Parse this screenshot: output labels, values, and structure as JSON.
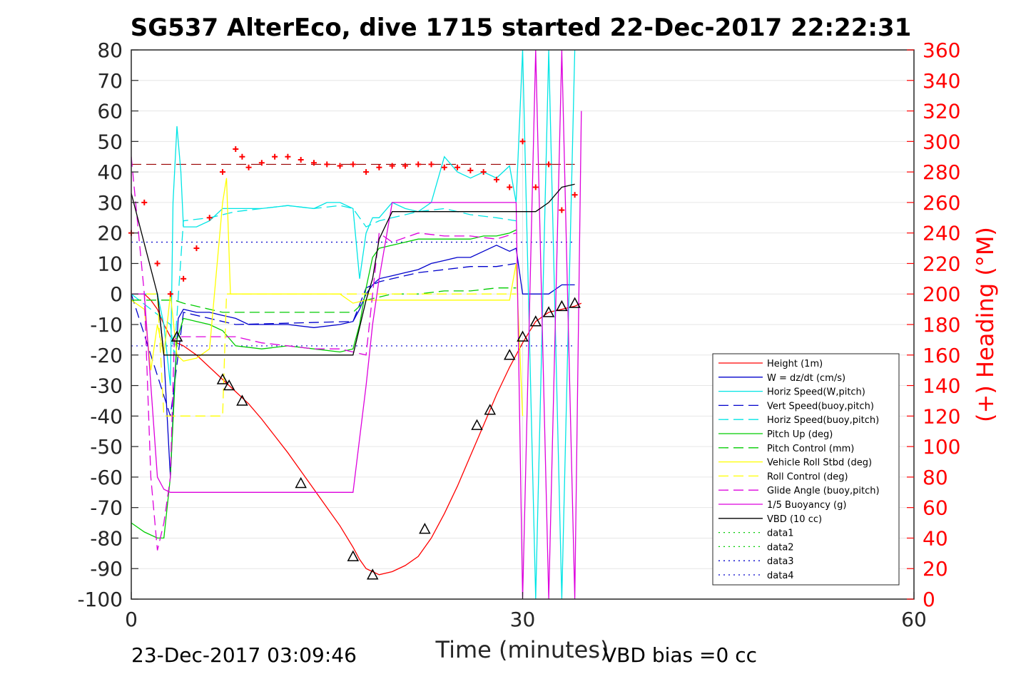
{
  "chart_data": {
    "type": "line",
    "title": "SG537 AlterEco, dive 1715 started 22-Dec-2017 22:22:31",
    "xlabel": "Time (minutes)",
    "ylabel": "",
    "y2label": "(+) Heading (°M)",
    "xlim": [
      0,
      60
    ],
    "ylim": [
      -100,
      80
    ],
    "y2lim": [
      0,
      360
    ],
    "xticks": [
      "0",
      "30",
      "60"
    ],
    "yticks": [
      "80",
      "70",
      "60",
      "50",
      "40",
      "30",
      "20",
      "10",
      "0",
      "-10",
      "-20",
      "-30",
      "-40",
      "-50",
      "-60",
      "-70",
      "-80",
      "-90",
      "-100"
    ],
    "y2ticks": [
      "360",
      "340",
      "320",
      "300",
      "280",
      "260",
      "240",
      "220",
      "200",
      "180",
      "160",
      "140",
      "120",
      "100",
      "80",
      "60",
      "40",
      "20",
      "0"
    ],
    "grid": true,
    "legend_position": "bottom-right",
    "footer_left": "23-Dec-2017 03:09:46",
    "footer_right": "VBD bias =0 cc",
    "colors": {
      "height": "#ff0000",
      "w": "#0000cc",
      "horiz_w": "#00e5e5",
      "vert_buoy": "#0000cc",
      "horiz_buoy": "#00e5e5",
      "pitch_up": "#00cc00",
      "pitch_ctrl": "#00cc00",
      "roll": "#ffff00",
      "roll_ctrl": "#ffff00",
      "glide": "#dd00dd",
      "buoyancy": "#dd00dd",
      "vbd": "#000000",
      "heading": "#ff0000"
    },
    "legend": [
      {
        "label": "Height (1m)",
        "color": "#ff0000",
        "dash": "solid"
      },
      {
        "label": "W = dz/dt (cm/s)",
        "color": "#0000cc",
        "dash": "solid"
      },
      {
        "label": "Horiz Speed(W,pitch)",
        "color": "#00e5e5",
        "dash": "solid"
      },
      {
        "label": "Vert Speed(buoy,pitch)",
        "color": "#0000cc",
        "dash": "dashed"
      },
      {
        "label": "Horiz Speed(buoy,pitch)",
        "color": "#00e5e5",
        "dash": "dashed"
      },
      {
        "label": "Pitch Up (deg)",
        "color": "#00cc00",
        "dash": "solid"
      },
      {
        "label": "Pitch Control (mm)",
        "color": "#00cc00",
        "dash": "dashed"
      },
      {
        "label": "Vehicle Roll Stbd (deg)",
        "color": "#ffff00",
        "dash": "solid"
      },
      {
        "label": "Roll Control (deg)",
        "color": "#ffff00",
        "dash": "dashed"
      },
      {
        "label": "Glide Angle (buoy,pitch)",
        "color": "#dd00dd",
        "dash": "dashed"
      },
      {
        "label": "1/5 Buoyancy (g)",
        "color": "#dd00dd",
        "dash": "solid"
      },
      {
        "label": "VBD (10 cc)",
        "color": "#000000",
        "dash": "solid"
      },
      {
        "label": "data1",
        "color": "#00cc00",
        "dash": "dotted"
      },
      {
        "label": "data2",
        "color": "#00cc00",
        "dash": "dotted"
      },
      {
        "label": "data3",
        "color": "#0000cc",
        "dash": "dotted"
      },
      {
        "label": "data4",
        "color": "#0000cc",
        "dash": "dotted"
      }
    ],
    "series": [
      {
        "key": "height",
        "x": [
          0,
          0.5,
          1,
          1.5,
          2,
          2.5,
          3,
          3.5,
          4,
          5,
          6,
          7,
          8,
          9,
          10,
          12,
          14,
          15,
          16,
          17,
          17.5,
          18,
          18.5,
          19,
          20,
          21,
          22,
          23,
          24,
          25,
          26,
          27,
          28,
          29,
          30,
          31,
          32,
          33,
          34,
          34.5
        ],
        "y": [
          0,
          0,
          0,
          -2,
          -5,
          -10,
          -14,
          -16,
          -17,
          -20,
          -24,
          -28,
          -32,
          -36,
          -41,
          -52,
          -64,
          -70,
          -76,
          -83,
          -87,
          -90,
          -91,
          -92,
          -91,
          -89,
          -86,
          -80,
          -72,
          -63,
          -53,
          -43,
          -33,
          -24,
          -16,
          -9,
          -6,
          -5,
          -4,
          -3
        ]
      },
      {
        "key": "w",
        "x": [
          0,
          1,
          2,
          2.5,
          3,
          3.3,
          3.6,
          4,
          5,
          6,
          7,
          8,
          9,
          10,
          12,
          14,
          16,
          17,
          17.5,
          18,
          18.5,
          19,
          20,
          21,
          22,
          23,
          24,
          25,
          26,
          27,
          28,
          29,
          29.5,
          30,
          31,
          32,
          33,
          34
        ],
        "y": [
          0,
          0,
          0,
          -20,
          -60,
          -30,
          -8,
          -5,
          -6,
          -6,
          -7,
          -8,
          -10,
          -10,
          -10,
          -11,
          -10,
          -9,
          -5,
          0,
          3,
          5,
          6,
          7,
          8,
          10,
          11,
          12,
          12,
          14,
          16,
          14,
          15,
          0,
          0,
          0,
          3,
          3
        ]
      },
      {
        "key": "horiz_w",
        "x": [
          0,
          1,
          2,
          2.5,
          3,
          3.2,
          3.5,
          3.8,
          4,
          5,
          6,
          7,
          8,
          9,
          10,
          12,
          14,
          15,
          16,
          17,
          17.5,
          18,
          18.5,
          19,
          20,
          21,
          22,
          23,
          24,
          25,
          26,
          27,
          28,
          29,
          29.5,
          30,
          31,
          32,
          33,
          34
        ],
        "y": [
          0,
          0,
          0,
          -10,
          -30,
          30,
          55,
          40,
          22,
          22,
          24,
          28,
          28,
          28,
          28,
          29,
          28,
          30,
          30,
          28,
          5,
          20,
          25,
          25,
          30,
          28,
          27,
          30,
          45,
          40,
          38,
          40,
          38,
          42,
          30,
          80,
          -100,
          80,
          -100,
          80
        ]
      },
      {
        "key": "vert_buoy",
        "x": [
          0,
          3,
          3.3,
          4,
          8,
          17,
          18,
          19,
          20,
          22,
          24,
          26,
          28,
          29.5
        ],
        "y": [
          0,
          -40,
          -30,
          -6,
          -10,
          -9,
          2,
          4,
          5,
          7,
          8,
          9,
          9,
          10
        ]
      },
      {
        "key": "horiz_buoy",
        "x": [
          0,
          3,
          3.3,
          4,
          6,
          8,
          10,
          12,
          14,
          16,
          17,
          18,
          19,
          20,
          22,
          24,
          26,
          28,
          29.5
        ],
        "y": [
          0,
          -10,
          -20,
          24,
          25,
          27,
          28,
          29,
          28,
          29,
          28,
          22,
          24,
          25,
          27,
          28,
          26,
          25,
          24
        ]
      },
      {
        "key": "pitch_up",
        "x": [
          0,
          1,
          2,
          2.5,
          3,
          3.5,
          4,
          5,
          6,
          7,
          8,
          10,
          12,
          14,
          16,
          17,
          17.5,
          18,
          18.5,
          19,
          20,
          21,
          22,
          23,
          24,
          25,
          26,
          27,
          28,
          29,
          29.5
        ],
        "y": [
          -75,
          -78,
          -80,
          -80,
          -60,
          -15,
          -8,
          -9,
          -10,
          -12,
          -17,
          -18,
          -17,
          -18,
          -19,
          -18,
          -10,
          2,
          12,
          15,
          16,
          17,
          18,
          18,
          18,
          18,
          18,
          19,
          19,
          20,
          21
        ]
      },
      {
        "key": "pitch_ctrl",
        "x": [
          0,
          3,
          3.3,
          4,
          7,
          17,
          18,
          20,
          22,
          24,
          26,
          28,
          29.5
        ],
        "y": [
          -2,
          -2,
          -2,
          -3,
          -6,
          -6,
          -2,
          0,
          0,
          1,
          1,
          2,
          2
        ]
      },
      {
        "key": "roll",
        "x": [
          0,
          1,
          1.5,
          2,
          2.5,
          3,
          3.5,
          4,
          5,
          6,
          7,
          7.3,
          7.6,
          8,
          10,
          12,
          14,
          16,
          17,
          18,
          20,
          22,
          24,
          26,
          28,
          29,
          29.5,
          30
        ],
        "y": [
          -2,
          -5,
          -25,
          -10,
          -20,
          0,
          -20,
          -22,
          -21,
          -18,
          30,
          38,
          0,
          0,
          0,
          0,
          0,
          0,
          -3,
          -2,
          -2,
          -2,
          -2,
          -2,
          -2,
          -2,
          10,
          -40
        ]
      },
      {
        "key": "roll_ctrl",
        "x": [
          0,
          2,
          2.5,
          3,
          3.5,
          4,
          6,
          7,
          7.3,
          8,
          17,
          18,
          29.5
        ],
        "y": [
          0,
          0,
          -40,
          -40,
          -40,
          -40,
          -40,
          -40,
          0,
          0,
          0,
          0,
          0
        ]
      },
      {
        "key": "glide",
        "x": [
          0,
          1,
          1.5,
          2,
          2.5,
          3,
          3.3,
          3.6,
          4,
          6,
          8,
          10,
          12,
          14,
          16,
          17,
          18,
          19,
          20,
          22,
          24,
          26,
          28,
          29.5
        ],
        "y": [
          45,
          0,
          -60,
          -84,
          -75,
          -60,
          -15,
          -14,
          -14,
          -14,
          -14,
          -16,
          -17,
          -18,
          -18,
          -19,
          -20,
          20,
          17,
          20,
          19,
          19,
          18,
          20
        ]
      },
      {
        "key": "buoyancy",
        "x": [
          0,
          1,
          2,
          2.5,
          3,
          3.5,
          4,
          8,
          12,
          16,
          17,
          18,
          18.5,
          19,
          20,
          22,
          24,
          26,
          28,
          29,
          29.5,
          30,
          31,
          32,
          33,
          34,
          34.5
        ],
        "y": [
          0,
          0,
          -60,
          -64,
          -65,
          -65,
          -65,
          -65,
          -65,
          -65,
          -65,
          -30,
          -10,
          5,
          30,
          30,
          30,
          30,
          30,
          30,
          30,
          -100,
          80,
          -100,
          80,
          -100,
          60
        ]
      },
      {
        "key": "vbd",
        "x": [
          0,
          2,
          2.5,
          3,
          4,
          16,
          17,
          18,
          18.5,
          19,
          20,
          22,
          24,
          26,
          28,
          29,
          30,
          31,
          32,
          33,
          34
        ],
        "y": [
          33,
          0,
          -20,
          -20,
          -20,
          -20,
          -20,
          -2,
          5,
          18,
          27,
          27,
          27,
          27,
          27,
          27,
          27,
          27,
          30,
          35,
          36
        ]
      },
      {
        "key": "heading",
        "x": [
          0,
          1,
          2,
          3,
          4,
          5,
          6,
          7,
          8,
          8.5,
          9,
          10,
          11,
          12,
          13,
          14,
          15,
          16,
          17,
          18,
          19,
          20,
          21,
          22,
          23,
          24,
          25,
          26,
          27,
          28,
          29,
          30,
          31,
          32,
          33,
          34
        ],
        "y": [
          240,
          260,
          220,
          200,
          210,
          230,
          250,
          280,
          295,
          290,
          283,
          286,
          290,
          290,
          288,
          286,
          285,
          284,
          285,
          280,
          283,
          284,
          284,
          285,
          285,
          283,
          283,
          281,
          280,
          275,
          270,
          300,
          270,
          285,
          255,
          265
        ]
      }
    ],
    "reference_lines": [
      {
        "y": 42.5,
        "color": "#990000",
        "dash": "dashed"
      },
      {
        "y": 17,
        "color": "#0000cc",
        "dash": "dotted"
      },
      {
        "y": -17,
        "color": "#0000cc",
        "dash": "dotted"
      }
    ],
    "triangle_markers": [
      {
        "x": 3.5,
        "y": -14
      },
      {
        "x": 7,
        "y": -28
      },
      {
        "x": 7.5,
        "y": -30
      },
      {
        "x": 8.5,
        "y": -35
      },
      {
        "x": 13,
        "y": -62
      },
      {
        "x": 17,
        "y": -86
      },
      {
        "x": 18.5,
        "y": -92
      },
      {
        "x": 22.5,
        "y": -77
      },
      {
        "x": 26.5,
        "y": -43
      },
      {
        "x": 27.5,
        "y": -38
      },
      {
        "x": 29,
        "y": -20
      },
      {
        "x": 30,
        "y": -14
      },
      {
        "x": 31,
        "y": -9
      },
      {
        "x": 32,
        "y": -6
      },
      {
        "x": 33,
        "y": -4
      },
      {
        "x": 34,
        "y": -3
      }
    ]
  }
}
